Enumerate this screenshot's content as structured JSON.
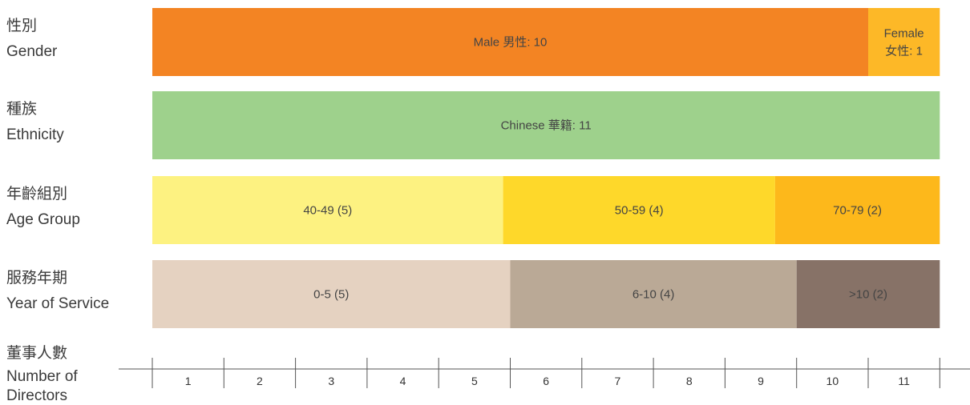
{
  "chart_data": {
    "type": "bar",
    "orientation": "horizontal-stacked",
    "x_unit_max": 11,
    "rows": [
      {
        "label_zh": "性別",
        "label_en": [
          "Gender"
        ],
        "segments": [
          {
            "text": [
              "Male 男性: 10"
            ],
            "start": 0,
            "value": 10,
            "color": "#F38423"
          },
          {
            "text": [
              "Female",
              "女性: 1"
            ],
            "start": 10,
            "value": 1,
            "color": "#FDB827"
          }
        ]
      },
      {
        "label_zh": "種族",
        "label_en": [
          "Ethnicity"
        ],
        "segments": [
          {
            "text": [
              "Chinese 華籍: 11"
            ],
            "start": 0,
            "value": 11,
            "color": "#9ED18C"
          }
        ]
      },
      {
        "label_zh": "年齡組別",
        "label_en": [
          "Age Group"
        ],
        "segments": [
          {
            "text": [
              "40-49 (5)"
            ],
            "start": 0,
            "value": 4.9,
            "color": "#FDF281"
          },
          {
            "text": [
              "50-59 (4)"
            ],
            "start": 4.9,
            "value": 3.8,
            "color": "#FED82A"
          },
          {
            "text": [
              "70-79 (2)"
            ],
            "start": 8.7,
            "value": 2.3,
            "color": "#FDB81B"
          }
        ]
      },
      {
        "label_zh": "服務年期",
        "label_en": [
          "Year of Service"
        ],
        "segments": [
          {
            "text": [
              "0-5 (5)"
            ],
            "start": 0,
            "value": 5,
            "color": "#E5D2C1"
          },
          {
            "text": [
              "6-10 (4)"
            ],
            "start": 5,
            "value": 4,
            "color": "#BAA996"
          },
          {
            "text": [
              "&gt;10 (2)"
            ],
            "start": 9,
            "value": 2,
            "color": "#877267"
          }
        ]
      }
    ],
    "axis": {
      "label_zh": "董事人數",
      "label_en": [
        "Number of",
        "Directors"
      ],
      "ticks": [
        "1",
        "2",
        "3",
        "4",
        "5",
        "6",
        "7",
        "8",
        "9",
        "10",
        "11"
      ]
    }
  }
}
